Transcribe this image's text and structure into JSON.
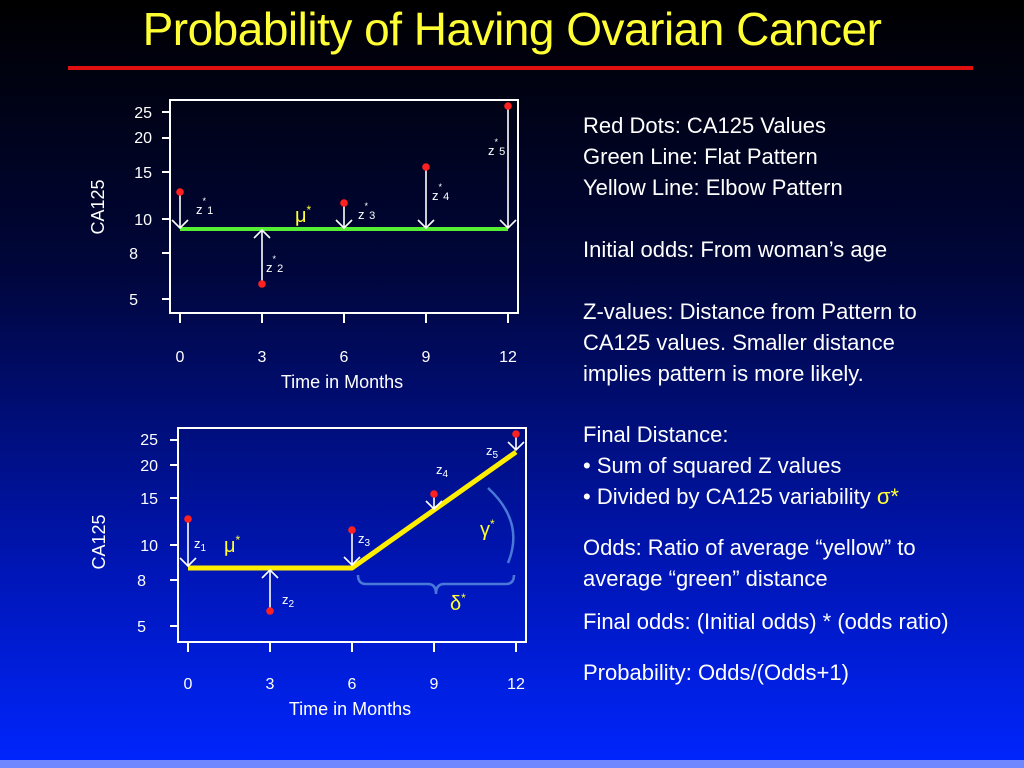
{
  "title": "Probability of Having Ovarian Cancer",
  "colors": {
    "title": "#ffff33",
    "rule": "#e01010",
    "red_dot": "#ff2020",
    "green_line": "#55ee33",
    "yellow_line": "#ffee00",
    "bracket": "#4a78d8",
    "greek": "#ffff33"
  },
  "chart_data": [
    {
      "type": "scatter",
      "title": "",
      "xlabel": "Time in Months",
      "ylabel": "CA125",
      "xticks": [
        "0",
        "3",
        "6",
        "9",
        "12"
      ],
      "yticks": [
        "5",
        "8",
        "10",
        "15",
        "20",
        "25"
      ],
      "scale": "log",
      "points": [
        {
          "x": 0,
          "y": 12
        },
        {
          "x": 3,
          "y": 5.6
        },
        {
          "x": 6,
          "y": 11.5
        },
        {
          "x": 9,
          "y": 15.5
        },
        {
          "x": 12,
          "y": 27
        }
      ],
      "pattern": {
        "name": "Flat Pattern",
        "color": "green",
        "level": 9.3
      },
      "labels": [
        "z*1",
        "z*2",
        "z*3",
        "z*4",
        "z*5",
        "μ*"
      ]
    },
    {
      "type": "scatter",
      "title": "",
      "xlabel": "Time in Months",
      "ylabel": "CA125",
      "xticks": [
        "0",
        "3",
        "6",
        "9",
        "12"
      ],
      "yticks": [
        "5",
        "8",
        "10",
        "15",
        "20",
        "25"
      ],
      "scale": "log",
      "points": [
        {
          "x": 0,
          "y": 12.5
        },
        {
          "x": 3,
          "y": 5.6
        },
        {
          "x": 6,
          "y": 12
        },
        {
          "x": 9,
          "y": 17
        },
        {
          "x": 12,
          "y": 26
        }
      ],
      "pattern": {
        "name": "Elbow Pattern",
        "color": "yellow",
        "level": 9,
        "elbow_x": 6,
        "end_y": 23
      },
      "labels": [
        "z1",
        "z2",
        "z3",
        "z4",
        "z5",
        "μ*",
        "γ*",
        "δ*"
      ]
    }
  ],
  "notes": {
    "legend_red": "Red Dots: CA125 Values",
    "legend_green": "Green Line: Flat Pattern",
    "legend_yellow": "Yellow Line: Elbow Pattern",
    "initial_odds": "Initial odds: From woman’s age",
    "zvalues_1": "Z-values: Distance from Pattern to",
    "zvalues_2": "CA125 values. Smaller distance",
    "zvalues_3": "implies pattern is more likely.",
    "final_distance": "Final Distance:",
    "bullet_1": "• Sum of squared Z values",
    "bullet_2": "• Divided by CA125 variability ",
    "sigma": "σ*",
    "odds_1": "Odds: Ratio of average “yellow” to",
    "odds_2": "average “green” distance",
    "final_odds": "Final odds: (Initial odds) * (odds ratio)",
    "probability": "Probability: Odds/(Odds+1)"
  }
}
